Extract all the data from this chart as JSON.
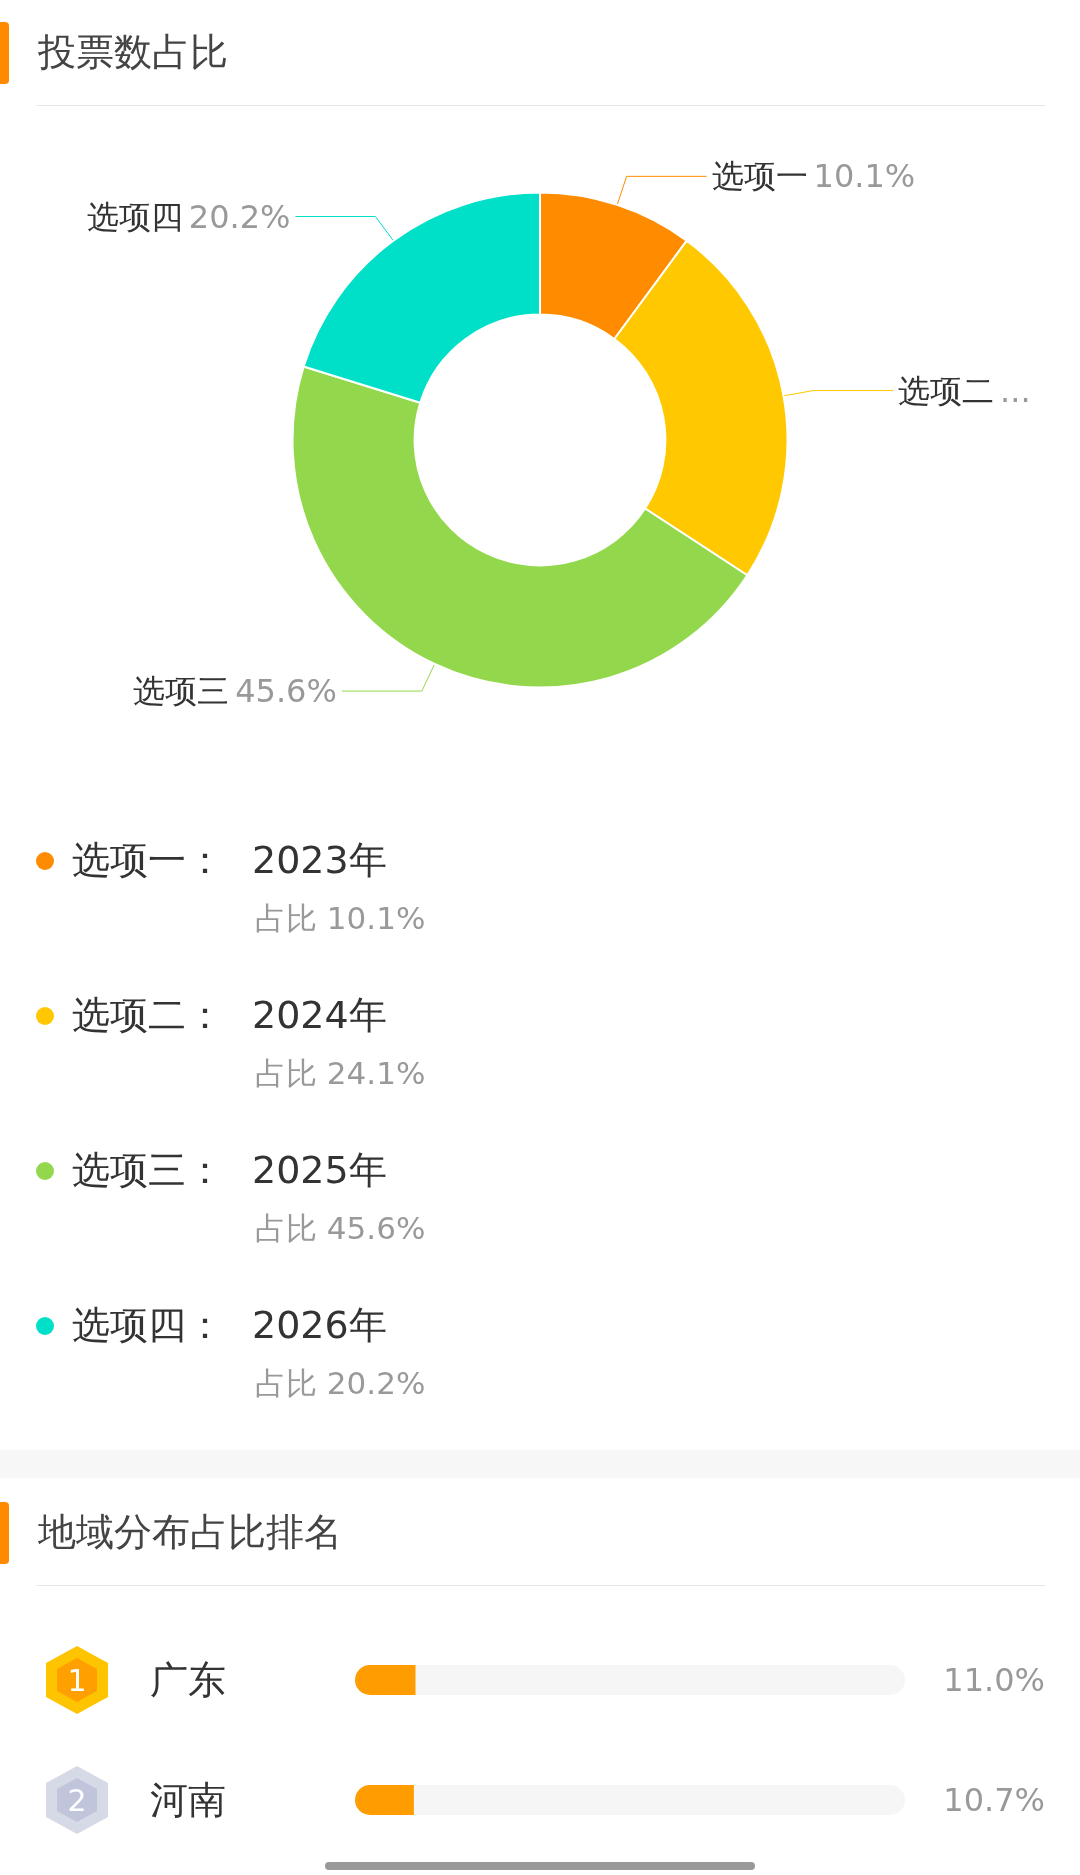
{
  "chart_data": [
    {
      "type": "donut",
      "title": "投票数占比",
      "categories": [
        "选项一",
        "选项二",
        "选项三",
        "选项四"
      ],
      "values": [
        10.1,
        24.1,
        45.6,
        20.2
      ],
      "colors": [
        "#ff8c00",
        "#ffc800",
        "#93d84c",
        "#00dfc8"
      ],
      "value_labels": [
        "10.1%",
        "...",
        "45.6%",
        "20.2%"
      ],
      "annotations": [
        "选项一：",
        "2023年",
        "占比 10.1%",
        "选项二：",
        "2024年",
        "占比 24.1%",
        "选项三：",
        "2025年",
        "占比 45.6%",
        "选项四：",
        "2026年",
        "占比 20.2%"
      ]
    },
    {
      "type": "bar",
      "title": "地域分布占比排名",
      "orientation": "horizontal",
      "categories": [
        "广东",
        "河南"
      ],
      "values": [
        11.0,
        10.7
      ],
      "color": "#ff9c00",
      "xlim": [
        0,
        100
      ],
      "tick_labels": "y",
      "value_labels": [
        "11.0%",
        "10.7%"
      ],
      "annotations": [
        "1",
        "2"
      ]
    }
  ]
}
